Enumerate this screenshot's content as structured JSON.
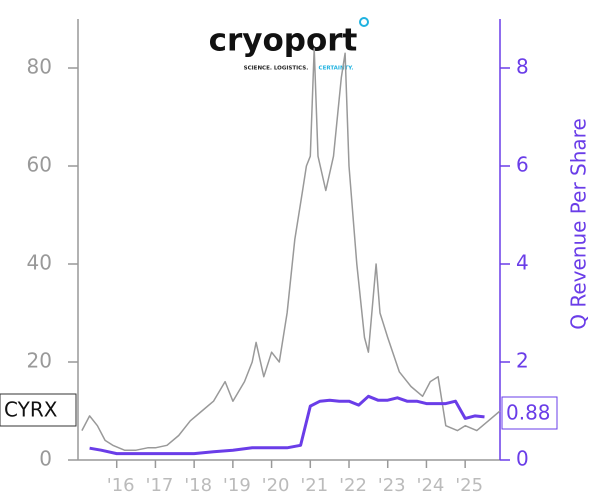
{
  "chart_data": {
    "type": "line",
    "logo": {
      "name": "cryoport",
      "tagline": "SCIENCE. LOGISTICS.",
      "tagline_accent": "CERTAINTY."
    },
    "ticker": "CYRX",
    "xlim": [
      2015,
      2025.9
    ],
    "xticks": [
      {
        "value": 2016,
        "label": "'16"
      },
      {
        "value": 2017,
        "label": "'17"
      },
      {
        "value": 2018,
        "label": "'18"
      },
      {
        "value": 2019,
        "label": "'19"
      },
      {
        "value": 2020,
        "label": "'20"
      },
      {
        "value": 2021,
        "label": "'21"
      },
      {
        "value": 2022,
        "label": "'22"
      },
      {
        "value": 2023,
        "label": "'23"
      },
      {
        "value": 2024,
        "label": "'24"
      },
      {
        "value": 2025,
        "label": "'25"
      }
    ],
    "ylim": [
      0,
      90
    ],
    "yticks": [
      0,
      20,
      40,
      60,
      80
    ],
    "y2lim": [
      0,
      9
    ],
    "y2ticks": [
      0,
      2,
      4,
      6,
      8
    ],
    "series": [
      {
        "name": "CYRX",
        "color": "#999999",
        "x": [
          2015.1,
          2015.3,
          2015.5,
          2015.7,
          2015.9,
          2016.2,
          2016.5,
          2016.8,
          2017.0,
          2017.3,
          2017.6,
          2017.9,
          2018.2,
          2018.5,
          2018.8,
          2019.0,
          2019.3,
          2019.5,
          2019.6,
          2019.8,
          2020.0,
          2020.2,
          2020.4,
          2020.6,
          2020.8,
          2020.9,
          2021.0,
          2021.1,
          2021.2,
          2021.4,
          2021.6,
          2021.8,
          2021.9,
          2022.0,
          2022.2,
          2022.4,
          2022.5,
          2022.7,
          2022.8,
          2023.0,
          2023.3,
          2023.6,
          2023.9,
          2024.1,
          2024.3,
          2024.5,
          2024.8,
          2025.0,
          2025.3,
          2025.6,
          2025.9
        ],
        "values": [
          6,
          9,
          7,
          4,
          3,
          2,
          2,
          2.5,
          2.5,
          3,
          5,
          8,
          10,
          12,
          16,
          12,
          16,
          20,
          24,
          17,
          22,
          20,
          30,
          45,
          55,
          60,
          62,
          84,
          62,
          55,
          62,
          78,
          83,
          60,
          40,
          25,
          22,
          40,
          30,
          25,
          18,
          15,
          13,
          16,
          17,
          7,
          6,
          7,
          6,
          8,
          10
        ]
      },
      {
        "name": "Q Revenue Per Share",
        "color": "#6a3de8",
        "axis": "y2",
        "x": [
          2015.3,
          2015.6,
          2016.0,
          2017.0,
          2017.5,
          2018.0,
          2018.5,
          2019.0,
          2019.5,
          2020.0,
          2020.4,
          2020.75,
          2021.0,
          2021.25,
          2021.5,
          2021.75,
          2022.0,
          2022.25,
          2022.5,
          2022.75,
          2023.0,
          2023.25,
          2023.5,
          2023.75,
          2024.0,
          2024.25,
          2024.5,
          2024.75,
          2025.0,
          2025.25,
          2025.5
        ],
        "values": [
          0.24,
          0.2,
          0.13,
          0.13,
          0.13,
          0.13,
          0.17,
          0.2,
          0.25,
          0.25,
          0.25,
          0.3,
          1.1,
          1.2,
          1.22,
          1.2,
          1.2,
          1.12,
          1.3,
          1.22,
          1.22,
          1.27,
          1.2,
          1.2,
          1.15,
          1.15,
          1.15,
          1.2,
          0.85,
          0.9,
          0.88
        ]
      }
    ]
  }
}
